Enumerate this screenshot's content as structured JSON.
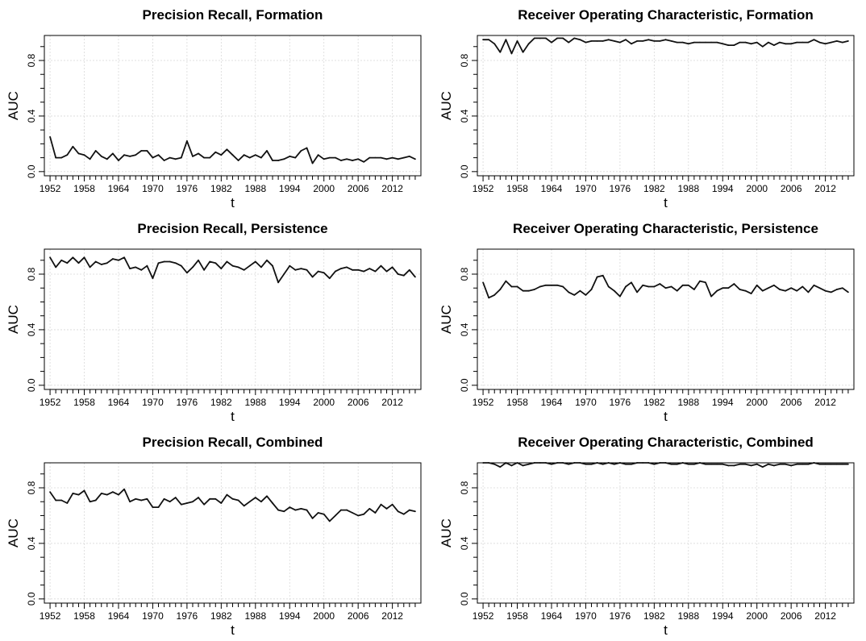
{
  "chart_data": [
    {
      "type": "line",
      "title": "Precision Recall, Formation",
      "xlabel": "t",
      "ylabel": "AUC",
      "xlim": [
        1951,
        2017
      ],
      "ylim": [
        0,
        1
      ],
      "xticks": [
        "1952",
        "1958",
        "1964",
        "1970",
        "1976",
        "1982",
        "1988",
        "1994",
        "2000",
        "2006",
        "2012"
      ],
      "yticks": [
        "0.0",
        "0.4",
        "0.8"
      ],
      "grid": true,
      "series": [
        {
          "x": [
            1952,
            1953,
            1954,
            1955,
            1956,
            1957,
            1958,
            1959,
            1960,
            1961,
            1962,
            1963,
            1964,
            1965,
            1966,
            1967,
            1968,
            1969,
            1970,
            1971,
            1972,
            1973,
            1974,
            1975,
            1976,
            1977,
            1978,
            1979,
            1980,
            1981,
            1982,
            1983,
            1984,
            1985,
            1986,
            1987,
            1988,
            1989,
            1990,
            1991,
            1992,
            1993,
            1994,
            1995,
            1996,
            1997,
            1998,
            1999,
            2000,
            2001,
            2002,
            2003,
            2004,
            2005,
            2006,
            2007,
            2008,
            2009,
            2010,
            2011,
            2012,
            2013,
            2014,
            2015,
            2016
          ],
          "y": [
            0.25,
            0.1,
            0.1,
            0.12,
            0.18,
            0.13,
            0.12,
            0.09,
            0.15,
            0.11,
            0.09,
            0.13,
            0.08,
            0.12,
            0.11,
            0.12,
            0.15,
            0.15,
            0.1,
            0.12,
            0.08,
            0.1,
            0.09,
            0.1,
            0.22,
            0.11,
            0.13,
            0.1,
            0.1,
            0.14,
            0.12,
            0.16,
            0.12,
            0.08,
            0.12,
            0.1,
            0.12,
            0.1,
            0.15,
            0.08,
            0.08,
            0.09,
            0.11,
            0.1,
            0.15,
            0.17,
            0.06,
            0.12,
            0.09,
            0.1,
            0.1,
            0.08,
            0.09,
            0.08,
            0.09,
            0.07,
            0.1,
            0.1,
            0.1,
            0.09,
            0.1,
            0.09,
            0.1,
            0.11,
            0.09
          ]
        }
      ]
    },
    {
      "type": "line",
      "title": "Receiver Operating Characteristic, Formation",
      "xlabel": "t",
      "ylabel": "AUC",
      "xlim": [
        1951,
        2017
      ],
      "ylim": [
        0,
        1
      ],
      "xticks": [
        "1952",
        "1958",
        "1964",
        "1970",
        "1976",
        "1982",
        "1988",
        "1994",
        "2000",
        "2006",
        "2012"
      ],
      "yticks": [
        "0.0",
        "0.4",
        "0.8"
      ],
      "grid": true,
      "series": [
        {
          "x": [
            1952,
            1953,
            1954,
            1955,
            1956,
            1957,
            1958,
            1959,
            1960,
            1961,
            1962,
            1963,
            1964,
            1965,
            1966,
            1967,
            1968,
            1969,
            1970,
            1971,
            1972,
            1973,
            1974,
            1975,
            1976,
            1977,
            1978,
            1979,
            1980,
            1981,
            1982,
            1983,
            1984,
            1985,
            1986,
            1987,
            1988,
            1989,
            1990,
            1991,
            1992,
            1993,
            1994,
            1995,
            1996,
            1997,
            1998,
            1999,
            2000,
            2001,
            2002,
            2003,
            2004,
            2005,
            2006,
            2007,
            2008,
            2009,
            2010,
            2011,
            2012,
            2013,
            2014,
            2015,
            2016
          ],
          "y": [
            0.95,
            0.95,
            0.92,
            0.86,
            0.95,
            0.85,
            0.94,
            0.86,
            0.92,
            0.96,
            0.96,
            0.96,
            0.93,
            0.96,
            0.96,
            0.93,
            0.96,
            0.95,
            0.93,
            0.94,
            0.94,
            0.94,
            0.95,
            0.94,
            0.93,
            0.95,
            0.92,
            0.94,
            0.94,
            0.95,
            0.94,
            0.94,
            0.95,
            0.94,
            0.93,
            0.93,
            0.92,
            0.93,
            0.93,
            0.93,
            0.93,
            0.93,
            0.92,
            0.91,
            0.91,
            0.93,
            0.93,
            0.92,
            0.93,
            0.9,
            0.93,
            0.91,
            0.93,
            0.92,
            0.92,
            0.93,
            0.93,
            0.93,
            0.95,
            0.93,
            0.92,
            0.93,
            0.94,
            0.93,
            0.94
          ]
        }
      ]
    },
    {
      "type": "line",
      "title": "Precision Recall, Persistence",
      "xlabel": "t",
      "ylabel": "AUC",
      "xlim": [
        1951,
        2017
      ],
      "ylim": [
        0,
        1
      ],
      "xticks": [
        "1952",
        "1958",
        "1964",
        "1970",
        "1976",
        "1982",
        "1988",
        "1994",
        "2000",
        "2006",
        "2012"
      ],
      "yticks": [
        "0.0",
        "0.4",
        "0.8"
      ],
      "grid": true,
      "series": [
        {
          "x": [
            1952,
            1953,
            1954,
            1955,
            1956,
            1957,
            1958,
            1959,
            1960,
            1961,
            1962,
            1963,
            1964,
            1965,
            1966,
            1967,
            1968,
            1969,
            1970,
            1971,
            1972,
            1973,
            1974,
            1975,
            1976,
            1977,
            1978,
            1979,
            1980,
            1981,
            1982,
            1983,
            1984,
            1985,
            1986,
            1987,
            1988,
            1989,
            1990,
            1991,
            1992,
            1993,
            1994,
            1995,
            1996,
            1997,
            1998,
            1999,
            2000,
            2001,
            2002,
            2003,
            2004,
            2005,
            2006,
            2007,
            2008,
            2009,
            2010,
            2011,
            2012,
            2013,
            2014,
            2015,
            2016
          ],
          "y": [
            0.92,
            0.85,
            0.9,
            0.88,
            0.92,
            0.88,
            0.92,
            0.85,
            0.89,
            0.87,
            0.88,
            0.91,
            0.9,
            0.92,
            0.84,
            0.85,
            0.83,
            0.86,
            0.77,
            0.88,
            0.89,
            0.89,
            0.88,
            0.86,
            0.81,
            0.85,
            0.9,
            0.83,
            0.89,
            0.88,
            0.84,
            0.89,
            0.86,
            0.85,
            0.83,
            0.86,
            0.89,
            0.85,
            0.9,
            0.86,
            0.74,
            0.8,
            0.86,
            0.83,
            0.84,
            0.83,
            0.78,
            0.82,
            0.81,
            0.77,
            0.82,
            0.84,
            0.85,
            0.83,
            0.83,
            0.82,
            0.84,
            0.82,
            0.86,
            0.82,
            0.85,
            0.8,
            0.79,
            0.83,
            0.78
          ]
        }
      ]
    },
    {
      "type": "line",
      "title": "Receiver Operating Characteristic, Persistence",
      "xlabel": "t",
      "ylabel": "AUC",
      "xlim": [
        1951,
        2017
      ],
      "ylim": [
        0,
        1
      ],
      "xticks": [
        "1952",
        "1958",
        "1964",
        "1970",
        "1976",
        "1982",
        "1988",
        "1994",
        "2000",
        "2006",
        "2012"
      ],
      "yticks": [
        "0.0",
        "0.4",
        "0.8"
      ],
      "grid": true,
      "series": [
        {
          "x": [
            1952,
            1953,
            1954,
            1955,
            1956,
            1957,
            1958,
            1959,
            1960,
            1961,
            1962,
            1963,
            1964,
            1965,
            1966,
            1967,
            1968,
            1969,
            1970,
            1971,
            1972,
            1973,
            1974,
            1975,
            1976,
            1977,
            1978,
            1979,
            1980,
            1981,
            1982,
            1983,
            1984,
            1985,
            1986,
            1987,
            1988,
            1989,
            1990,
            1991,
            1992,
            1993,
            1994,
            1995,
            1996,
            1997,
            1998,
            1999,
            2000,
            2001,
            2002,
            2003,
            2004,
            2005,
            2006,
            2007,
            2008,
            2009,
            2010,
            2011,
            2012,
            2013,
            2014,
            2015,
            2016
          ],
          "y": [
            0.74,
            0.63,
            0.65,
            0.69,
            0.75,
            0.71,
            0.71,
            0.68,
            0.68,
            0.69,
            0.71,
            0.72,
            0.72,
            0.72,
            0.71,
            0.67,
            0.65,
            0.68,
            0.65,
            0.69,
            0.78,
            0.79,
            0.71,
            0.68,
            0.64,
            0.71,
            0.74,
            0.67,
            0.72,
            0.71,
            0.71,
            0.73,
            0.7,
            0.71,
            0.68,
            0.72,
            0.72,
            0.69,
            0.75,
            0.74,
            0.64,
            0.68,
            0.7,
            0.7,
            0.73,
            0.69,
            0.68,
            0.66,
            0.72,
            0.68,
            0.7,
            0.72,
            0.69,
            0.68,
            0.7,
            0.68,
            0.71,
            0.67,
            0.72,
            0.7,
            0.68,
            0.67,
            0.69,
            0.7,
            0.67
          ]
        }
      ]
    },
    {
      "type": "line",
      "title": "Precision Recall, Combined",
      "xlabel": "t",
      "ylabel": "AUC",
      "xlim": [
        1951,
        2017
      ],
      "ylim": [
        0,
        1
      ],
      "xticks": [
        "1952",
        "1958",
        "1964",
        "1970",
        "1976",
        "1982",
        "1988",
        "1994",
        "2000",
        "2006",
        "2012"
      ],
      "yticks": [
        "0.0",
        "0.4",
        "0.8"
      ],
      "grid": true,
      "series": [
        {
          "x": [
            1952,
            1953,
            1954,
            1955,
            1956,
            1957,
            1958,
            1959,
            1960,
            1961,
            1962,
            1963,
            1964,
            1965,
            1966,
            1967,
            1968,
            1969,
            1970,
            1971,
            1972,
            1973,
            1974,
            1975,
            1976,
            1977,
            1978,
            1979,
            1980,
            1981,
            1982,
            1983,
            1984,
            1985,
            1986,
            1987,
            1988,
            1989,
            1990,
            1991,
            1992,
            1993,
            1994,
            1995,
            1996,
            1997,
            1998,
            1999,
            2000,
            2001,
            2002,
            2003,
            2004,
            2005,
            2006,
            2007,
            2008,
            2009,
            2010,
            2011,
            2012,
            2013,
            2014,
            2015,
            2016
          ],
          "y": [
            0.77,
            0.71,
            0.71,
            0.69,
            0.76,
            0.75,
            0.78,
            0.7,
            0.71,
            0.76,
            0.75,
            0.77,
            0.75,
            0.79,
            0.7,
            0.72,
            0.71,
            0.72,
            0.66,
            0.66,
            0.72,
            0.7,
            0.73,
            0.68,
            0.69,
            0.7,
            0.73,
            0.68,
            0.72,
            0.72,
            0.69,
            0.75,
            0.72,
            0.71,
            0.67,
            0.7,
            0.73,
            0.7,
            0.74,
            0.69,
            0.64,
            0.63,
            0.66,
            0.64,
            0.65,
            0.64,
            0.58,
            0.62,
            0.61,
            0.56,
            0.6,
            0.64,
            0.64,
            0.62,
            0.6,
            0.61,
            0.65,
            0.62,
            0.68,
            0.65,
            0.68,
            0.63,
            0.61,
            0.64,
            0.63
          ]
        }
      ]
    },
    {
      "type": "line",
      "title": "Receiver Operating Characteristic, Combined",
      "xlabel": "t",
      "ylabel": "AUC",
      "xlim": [
        1951,
        2017
      ],
      "ylim": [
        0,
        1
      ],
      "xticks": [
        "1952",
        "1958",
        "1964",
        "1970",
        "1976",
        "1982",
        "1988",
        "1994",
        "2000",
        "2006",
        "2012"
      ],
      "yticks": [
        "0.0",
        "0.4",
        "0.8"
      ],
      "grid": true,
      "series": [
        {
          "x": [
            1952,
            1953,
            1954,
            1955,
            1956,
            1957,
            1958,
            1959,
            1960,
            1961,
            1962,
            1963,
            1964,
            1965,
            1966,
            1967,
            1968,
            1969,
            1970,
            1971,
            1972,
            1973,
            1974,
            1975,
            1976,
            1977,
            1978,
            1979,
            1980,
            1981,
            1982,
            1983,
            1984,
            1985,
            1986,
            1987,
            1988,
            1989,
            1990,
            1991,
            1992,
            1993,
            1994,
            1995,
            1996,
            1997,
            1998,
            1999,
            2000,
            2001,
            2002,
            2003,
            2004,
            2005,
            2006,
            2007,
            2008,
            2009,
            2010,
            2011,
            2012,
            2013,
            2014,
            2015,
            2016
          ],
          "y": [
            0.98,
            0.98,
            0.97,
            0.95,
            0.98,
            0.96,
            0.98,
            0.96,
            0.97,
            0.98,
            0.98,
            0.98,
            0.97,
            0.98,
            0.98,
            0.97,
            0.98,
            0.98,
            0.97,
            0.97,
            0.98,
            0.97,
            0.98,
            0.97,
            0.98,
            0.97,
            0.97,
            0.98,
            0.98,
            0.98,
            0.97,
            0.98,
            0.98,
            0.97,
            0.97,
            0.98,
            0.97,
            0.97,
            0.98,
            0.97,
            0.97,
            0.97,
            0.97,
            0.96,
            0.96,
            0.97,
            0.97,
            0.96,
            0.97,
            0.95,
            0.97,
            0.96,
            0.97,
            0.97,
            0.96,
            0.97,
            0.97,
            0.97,
            0.98,
            0.97,
            0.97,
            0.97,
            0.97,
            0.97,
            0.97
          ]
        }
      ]
    }
  ]
}
